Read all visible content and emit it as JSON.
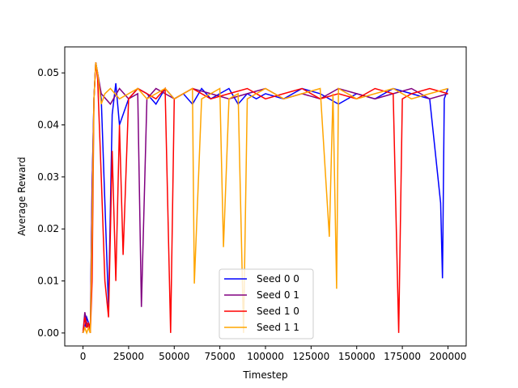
{
  "chart_data": {
    "type": "line",
    "xlabel": "Timestep",
    "ylabel": "Average Reward",
    "xlim": [
      -10000,
      210000
    ],
    "ylim": [
      -0.0025,
      0.055
    ],
    "xticks": [
      0,
      25000,
      50000,
      75000,
      100000,
      125000,
      150000,
      175000,
      200000
    ],
    "xtick_labels": [
      "0",
      "25000",
      "50000",
      "75000",
      "100000",
      "125000",
      "150000",
      "175000",
      "200000"
    ],
    "yticks": [
      0.0,
      0.01,
      0.02,
      0.03,
      0.04,
      0.05
    ],
    "ytick_labels": [
      "0.00",
      "0.01",
      "0.02",
      "0.03",
      "0.04",
      "0.05"
    ],
    "grid": false,
    "legend_position": "bottom-center",
    "series": [
      {
        "name": "Seed 0 0",
        "color": "#0000ff",
        "x": [
          0,
          1000,
          2000,
          3000,
          4000,
          5000,
          6000,
          7000,
          8000,
          10000,
          12000,
          14000,
          16000,
          18000,
          20000,
          25000,
          30000,
          35000,
          40000,
          45000,
          50000,
          55000,
          60000,
          65000,
          70000,
          75000,
          80000,
          85000,
          90000,
          95000,
          100000,
          110000,
          120000,
          130000,
          140000,
          150000,
          160000,
          170000,
          180000,
          190000,
          196000,
          197000,
          198000,
          200000
        ],
        "y": [
          0.0,
          0.001,
          0.003,
          0.002,
          0.001,
          0.028,
          0.045,
          0.052,
          0.05,
          0.045,
          0.025,
          0.005,
          0.042,
          0.048,
          0.04,
          0.045,
          0.047,
          0.046,
          0.044,
          0.047,
          0.045,
          0.046,
          0.044,
          0.047,
          0.045,
          0.046,
          0.047,
          0.044,
          0.046,
          0.045,
          0.046,
          0.045,
          0.047,
          0.046,
          0.044,
          0.046,
          0.045,
          0.047,
          0.046,
          0.045,
          0.025,
          0.0105,
          0.045,
          0.047
        ]
      },
      {
        "name": "Seed 0 1",
        "color": "#800080",
        "x": [
          0,
          1000,
          2000,
          3000,
          4000,
          5000,
          6000,
          7000,
          8000,
          10000,
          15000,
          20000,
          25000,
          30000,
          32000,
          35000,
          40000,
          45000,
          50000,
          60000,
          70000,
          80000,
          90000,
          100000,
          110000,
          120000,
          130000,
          140000,
          150000,
          160000,
          170000,
          180000,
          190000,
          200000
        ],
        "y": [
          0.0,
          0.004,
          0.002,
          0.001,
          0.0,
          0.028,
          0.045,
          0.052,
          0.05,
          0.046,
          0.044,
          0.047,
          0.045,
          0.046,
          0.005,
          0.045,
          0.047,
          0.046,
          0.045,
          0.047,
          0.046,
          0.045,
          0.046,
          0.047,
          0.045,
          0.046,
          0.045,
          0.047,
          0.046,
          0.045,
          0.046,
          0.047,
          0.045,
          0.046
        ]
      },
      {
        "name": "Seed 1 0",
        "color": "#ff0000",
        "x": [
          0,
          1000,
          2000,
          3000,
          4000,
          5000,
          6000,
          7000,
          8000,
          10000,
          12000,
          14000,
          16000,
          18000,
          20000,
          22000,
          25000,
          30000,
          35000,
          40000,
          45000,
          48000,
          50000,
          55000,
          60000,
          70000,
          80000,
          90000,
          100000,
          110000,
          120000,
          130000,
          140000,
          150000,
          160000,
          170000,
          173000,
          175000,
          180000,
          190000,
          200000
        ],
        "y": [
          0.0,
          0.003,
          0.001,
          0.002,
          0.0,
          0.01,
          0.045,
          0.052,
          0.049,
          0.03,
          0.01,
          0.003,
          0.035,
          0.01,
          0.04,
          0.015,
          0.045,
          0.047,
          0.046,
          0.045,
          0.047,
          0.0,
          0.045,
          0.046,
          0.047,
          0.045,
          0.046,
          0.047,
          0.045,
          0.046,
          0.047,
          0.045,
          0.046,
          0.045,
          0.047,
          0.046,
          0.0,
          0.045,
          0.046,
          0.047,
          0.046
        ]
      },
      {
        "name": "Seed 1 1",
        "color": "#ffa500",
        "x": [
          0,
          1000,
          2000,
          3000,
          4000,
          5000,
          6000,
          7000,
          8000,
          10000,
          12000,
          15000,
          20000,
          25000,
          30000,
          35000,
          40000,
          45000,
          50000,
          55000,
          60000,
          61000,
          65000,
          70000,
          75000,
          77000,
          80000,
          85000,
          88000,
          90000,
          95000,
          100000,
          110000,
          120000,
          130000,
          135000,
          137000,
          139000,
          140000,
          150000,
          160000,
          170000,
          180000,
          190000,
          200000
        ],
        "y": [
          0.0,
          0.001,
          0.0,
          0.001,
          0.0,
          0.02,
          0.045,
          0.052,
          0.05,
          0.044,
          0.046,
          0.047,
          0.045,
          0.046,
          0.047,
          0.045,
          0.046,
          0.047,
          0.045,
          0.046,
          0.047,
          0.0095,
          0.045,
          0.046,
          0.047,
          0.0165,
          0.045,
          0.046,
          0.0,
          0.045,
          0.046,
          0.047,
          0.045,
          0.046,
          0.047,
          0.0185,
          0.046,
          0.0085,
          0.047,
          0.045,
          0.046,
          0.047,
          0.045,
          0.046,
          0.047
        ]
      }
    ]
  }
}
